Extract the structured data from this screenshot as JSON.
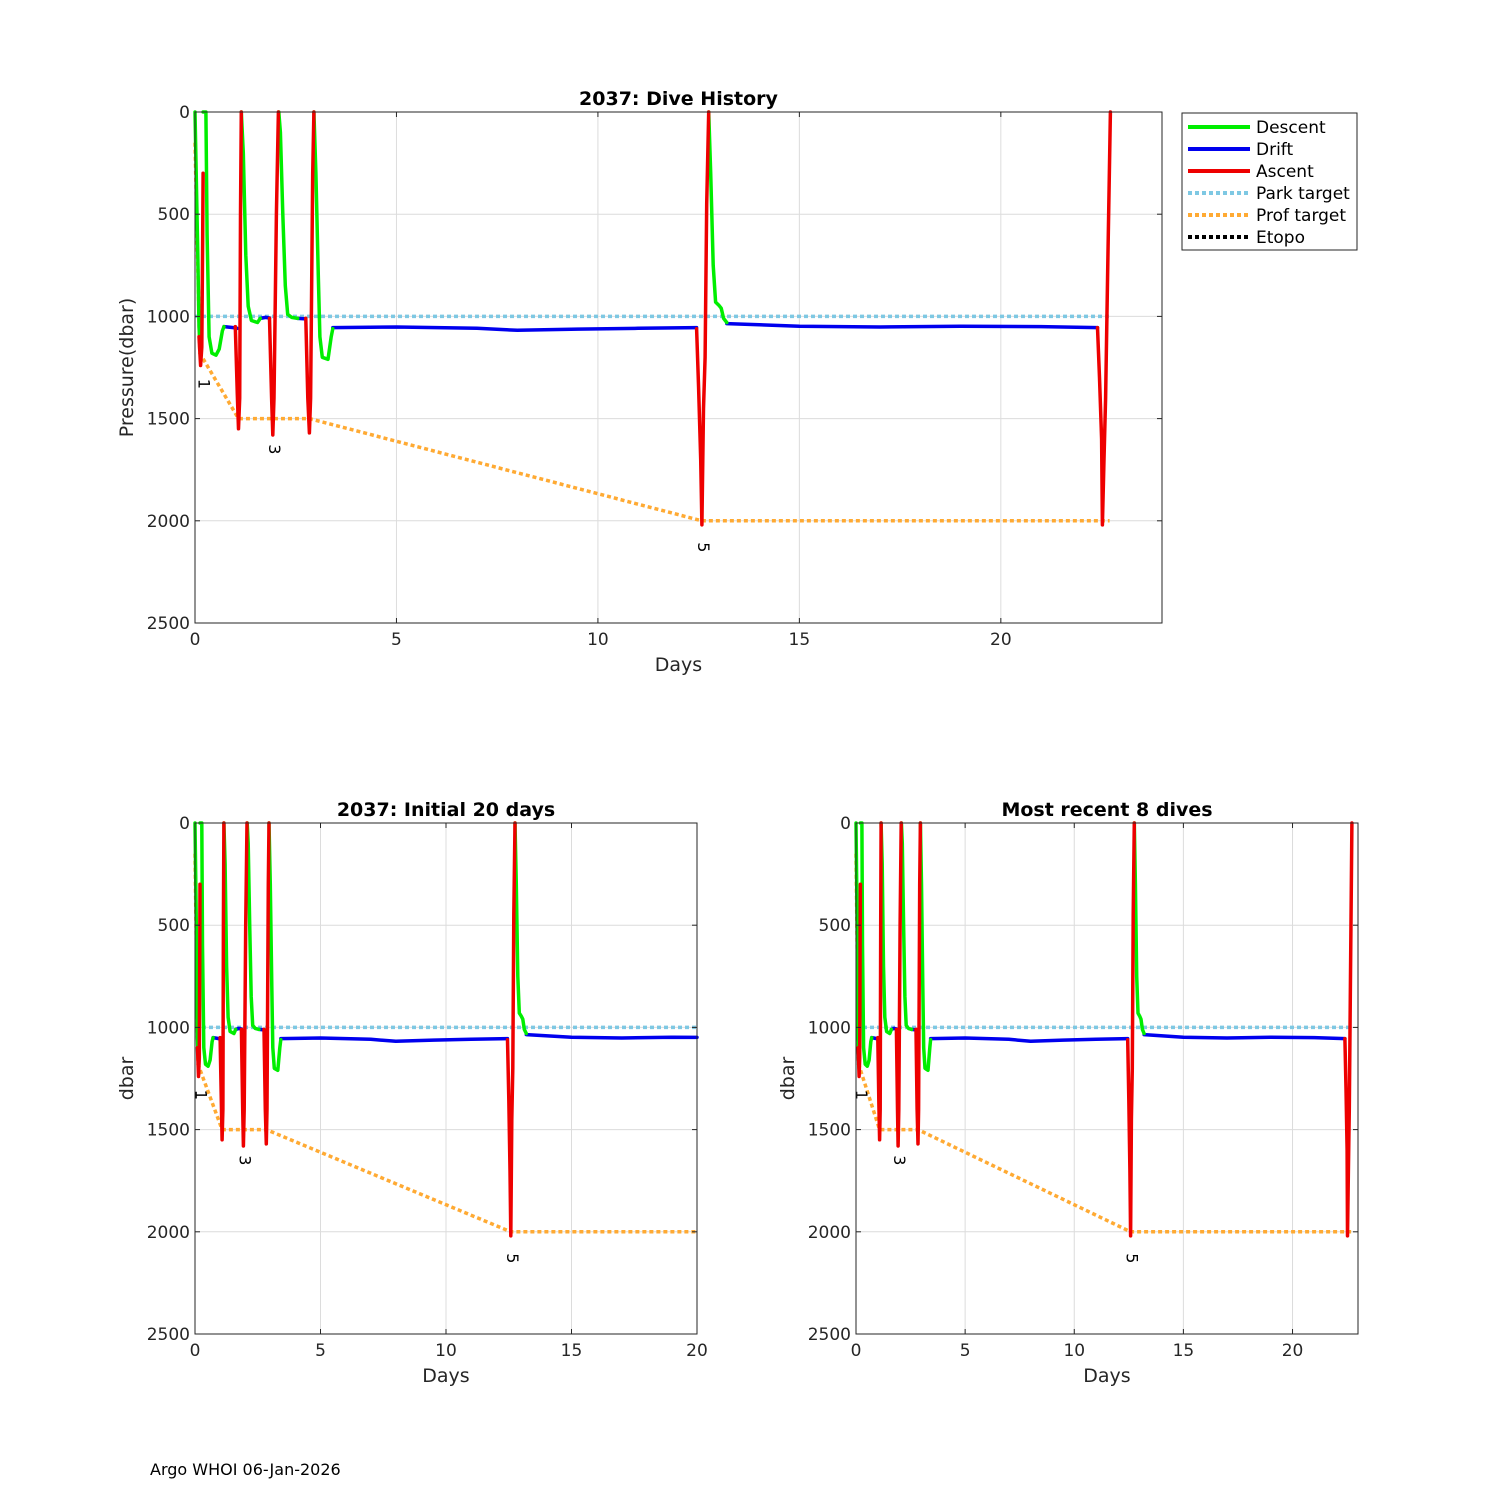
{
  "footer": "Argo WHOI 06-Jan-2026",
  "colors": {
    "descent": "#00ee00",
    "drift": "#0000ee",
    "ascent": "#ee0000",
    "park": "#7ec8e3",
    "prof": "#ffaa33",
    "etopo": "#000000"
  },
  "chart_data": [
    {
      "id": "main",
      "type": "line",
      "title": "2037: Dive History",
      "xlabel": "Days",
      "ylabel": "Pressure(dbar)",
      "xlim": [
        0,
        24
      ],
      "ylim": [
        0,
        2500
      ],
      "y_reversed": true,
      "grid": true,
      "xticks": [
        0,
        5,
        10,
        15,
        20
      ],
      "yticks": [
        0,
        500,
        1000,
        1500,
        2000,
        2500
      ],
      "legend": {
        "placement": "outside-top-right",
        "entries": [
          "Descent",
          "Drift",
          "Ascent",
          "Park target",
          "Prof target",
          "Etopo"
        ]
      },
      "cycle_labels": [
        {
          "text": "1",
          "x": 0.2,
          "y": 1330
        },
        {
          "text": "3",
          "x": 1.95,
          "y": 1650
        },
        {
          "text": "5",
          "x": 12.6,
          "y": 2130
        }
      ]
    },
    {
      "id": "initial",
      "type": "line",
      "title": "2037: Initial 20 days",
      "xlabel": "Days",
      "ylabel": "dbar",
      "xlim": [
        0,
        20
      ],
      "ylim": [
        0,
        2500
      ],
      "y_reversed": true,
      "grid": true,
      "xticks": [
        0,
        5,
        10,
        15,
        20
      ],
      "yticks": [
        0,
        500,
        1000,
        1500,
        2000,
        2500
      ],
      "cycle_labels": [
        {
          "text": "1",
          "x": 0.2,
          "y": 1330
        },
        {
          "text": "3",
          "x": 1.95,
          "y": 1650
        },
        {
          "text": "5",
          "x": 12.6,
          "y": 2130
        }
      ]
    },
    {
      "id": "recent",
      "type": "line",
      "title": "Most recent 8 dives",
      "xlabel": "Days",
      "ylabel": "dbar",
      "xlim": [
        0,
        23
      ],
      "ylim": [
        0,
        2500
      ],
      "y_reversed": true,
      "grid": true,
      "xticks": [
        0,
        5,
        10,
        15,
        20
      ],
      "yticks": [
        0,
        500,
        1000,
        1500,
        2000,
        2500
      ],
      "cycle_labels": [
        {
          "text": "1",
          "x": 0.2,
          "y": 1330
        },
        {
          "text": "3",
          "x": 1.95,
          "y": 1650
        },
        {
          "text": "5",
          "x": 12.6,
          "y": 2130
        }
      ]
    }
  ],
  "series": {
    "descent": [
      [
        [
          0.0,
          0
        ],
        [
          0.03,
          300
        ],
        [
          0.07,
          700
        ],
        [
          0.1,
          1050
        ],
        [
          0.14,
          1200
        ]
      ],
      [
        [
          0.2,
          0
        ],
        [
          0.27,
          0
        ],
        [
          0.3,
          600
        ],
        [
          0.35,
          1100
        ],
        [
          0.42,
          1180
        ],
        [
          0.52,
          1190
        ],
        [
          0.6,
          1160
        ],
        [
          0.68,
          1070
        ],
        [
          0.72,
          1050
        ]
      ],
      [
        [
          1.15,
          0
        ],
        [
          1.2,
          200
        ],
        [
          1.26,
          700
        ],
        [
          1.32,
          950
        ],
        [
          1.4,
          1020
        ],
        [
          1.55,
          1030
        ],
        [
          1.62,
          1010
        ]
      ],
      [
        [
          2.08,
          0
        ],
        [
          2.12,
          100
        ],
        [
          2.18,
          500
        ],
        [
          2.24,
          850
        ],
        [
          2.3,
          990
        ],
        [
          2.4,
          1005
        ],
        [
          2.55,
          1010
        ]
      ],
      [
        [
          2.95,
          0
        ],
        [
          3.0,
          300
        ],
        [
          3.06,
          800
        ],
        [
          3.1,
          1100
        ],
        [
          3.16,
          1200
        ],
        [
          3.3,
          1210
        ],
        [
          3.38,
          1100
        ],
        [
          3.42,
          1060
        ]
      ],
      [
        [
          12.75,
          0
        ],
        [
          12.8,
          300
        ],
        [
          12.86,
          750
        ],
        [
          12.92,
          930
        ],
        [
          13.0,
          945
        ],
        [
          13.06,
          960
        ],
        [
          13.12,
          1010
        ],
        [
          13.2,
          1030
        ]
      ]
    ],
    "drift": [
      [
        [
          0.72,
          1050
        ],
        [
          0.95,
          1055
        ],
        [
          1.05,
          1058
        ]
      ],
      [
        [
          1.62,
          1010
        ],
        [
          1.75,
          1005
        ],
        [
          1.85,
          1008
        ]
      ],
      [
        [
          2.55,
          1010
        ],
        [
          2.75,
          1012
        ]
      ],
      [
        [
          3.42,
          1055
        ],
        [
          5,
          1052
        ],
        [
          7,
          1058
        ],
        [
          8,
          1068
        ],
        [
          9.5,
          1062
        ],
        [
          11,
          1058
        ],
        [
          12.45,
          1055
        ]
      ],
      [
        [
          13.2,
          1035
        ],
        [
          15,
          1048
        ],
        [
          17,
          1052
        ],
        [
          19,
          1048
        ],
        [
          21,
          1050
        ],
        [
          22.4,
          1055
        ]
      ]
    ],
    "ascent": [
      [
        [
          0.1,
          1100
        ],
        [
          0.14,
          1240
        ],
        [
          0.17,
          1150
        ],
        [
          0.19,
          600
        ],
        [
          0.2,
          300
        ]
      ],
      [
        [
          1.0,
          1050
        ],
        [
          1.05,
          1380
        ],
        [
          1.08,
          1550
        ],
        [
          1.11,
          1400
        ],
        [
          1.13,
          500
        ],
        [
          1.15,
          0
        ]
      ],
      [
        [
          1.85,
          1010
        ],
        [
          1.9,
          1400
        ],
        [
          1.93,
          1580
        ],
        [
          1.96,
          1400
        ],
        [
          2.02,
          500
        ],
        [
          2.07,
          0
        ]
      ],
      [
        [
          2.75,
          1010
        ],
        [
          2.8,
          1400
        ],
        [
          2.84,
          1570
        ],
        [
          2.87,
          1400
        ],
        [
          2.92,
          300
        ],
        [
          2.95,
          0
        ]
      ],
      [
        [
          12.45,
          1060
        ],
        [
          12.5,
          1350
        ],
        [
          12.55,
          1700
        ],
        [
          12.58,
          2020
        ],
        [
          12.62,
          1450
        ],
        [
          12.66,
          1200
        ],
        [
          12.7,
          450
        ],
        [
          12.75,
          0
        ]
      ],
      [
        [
          22.4,
          1055
        ],
        [
          22.45,
          1300
        ],
        [
          22.5,
          1600
        ],
        [
          22.52,
          2020
        ],
        [
          22.56,
          1700
        ],
        [
          22.6,
          1400
        ],
        [
          22.65,
          800
        ],
        [
          22.72,
          0
        ]
      ]
    ],
    "park": [
      [
        0.0,
        1000
      ],
      [
        22.7,
        1000
      ]
    ],
    "prof": [
      [
        0.0,
        150
      ],
      [
        0.12,
        1180
      ],
      [
        1.08,
        1500
      ],
      [
        2.84,
        1500
      ],
      [
        12.58,
        2000
      ],
      [
        22.7,
        2000
      ]
    ]
  }
}
